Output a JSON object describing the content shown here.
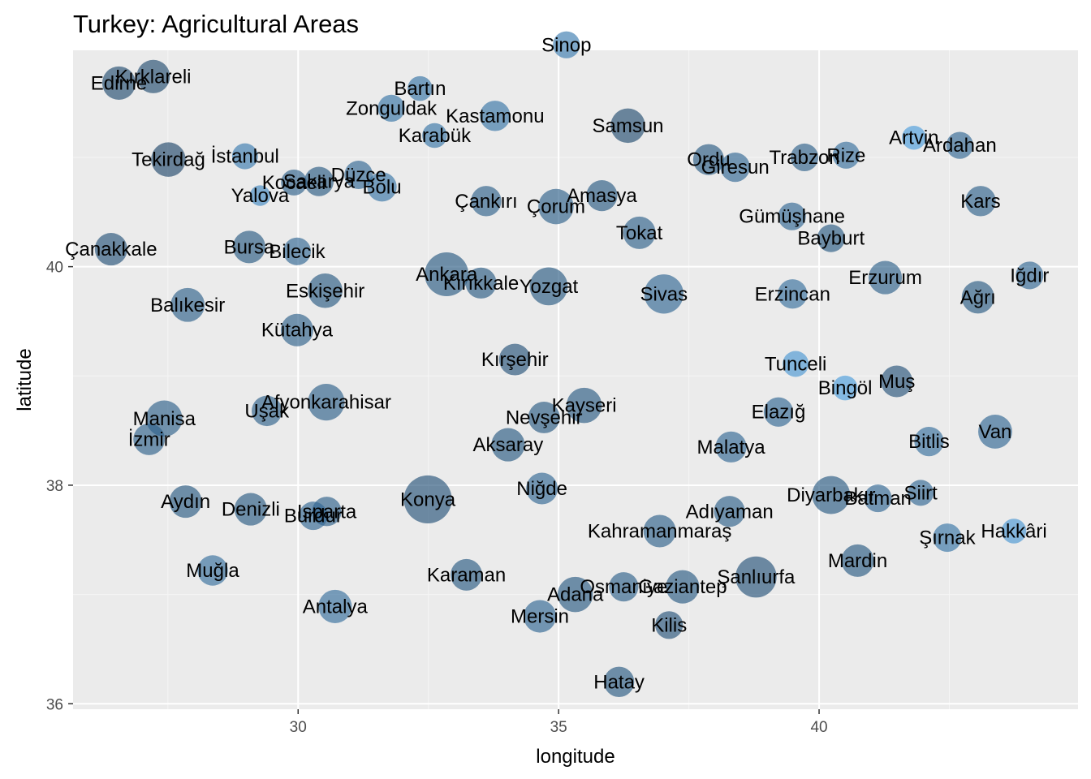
{
  "chart_data": {
    "type": "scatter",
    "title": "Turkey: Agricultural Areas",
    "xlabel": "longitude",
    "ylabel": "latitude",
    "xlim": [
      25.68,
      44.97
    ],
    "ylim": [
      35.95,
      41.98
    ],
    "x_ticks": [
      30,
      35,
      40
    ],
    "y_ticks": [
      36,
      38,
      40
    ],
    "grid": true,
    "panel_background": "#EBEBEB",
    "color_low": "#132B43",
    "color_high": "#56B1F7",
    "points": [
      {
        "name": "Edirne",
        "lon": 26.56,
        "lat": 41.68,
        "size": 0.58,
        "shade": 0.25
      },
      {
        "name": "Kırklareli",
        "lon": 27.22,
        "lat": 41.74,
        "size": 0.58,
        "shade": 0.25
      },
      {
        "name": "Tekirdağ",
        "lon": 27.51,
        "lat": 40.98,
        "size": 0.62,
        "shade": 0.22
      },
      {
        "name": "İstanbul",
        "lon": 28.98,
        "lat": 41.01,
        "size": 0.35,
        "shade": 0.6
      },
      {
        "name": "Çanakkale",
        "lon": 26.41,
        "lat": 40.16,
        "size": 0.55,
        "shade": 0.3
      },
      {
        "name": "Yalova",
        "lon": 29.27,
        "lat": 40.65,
        "size": 0.22,
        "shade": 0.7
      },
      {
        "name": "Kocaeli",
        "lon": 29.92,
        "lat": 40.77,
        "size": 0.35,
        "shade": 0.4
      },
      {
        "name": "Sakarya",
        "lon": 30.4,
        "lat": 40.78,
        "size": 0.45,
        "shade": 0.35
      },
      {
        "name": "Düzce",
        "lon": 31.16,
        "lat": 40.84,
        "size": 0.42,
        "shade": 0.45
      },
      {
        "name": "Bolu",
        "lon": 31.61,
        "lat": 40.73,
        "size": 0.45,
        "shade": 0.55
      },
      {
        "name": "Zonguldak",
        "lon": 31.79,
        "lat": 41.45,
        "size": 0.38,
        "shade": 0.55
      },
      {
        "name": "Bartın",
        "lon": 32.34,
        "lat": 41.63,
        "size": 0.32,
        "shade": 0.55
      },
      {
        "name": "Karabük",
        "lon": 32.62,
        "lat": 41.2,
        "size": 0.32,
        "shade": 0.55
      },
      {
        "name": "Kastamonu",
        "lon": 33.78,
        "lat": 41.38,
        "size": 0.48,
        "shade": 0.55
      },
      {
        "name": "Sinop",
        "lon": 35.15,
        "lat": 42.03,
        "size": 0.38,
        "shade": 0.6
      },
      {
        "name": "Samsun",
        "lon": 36.33,
        "lat": 41.29,
        "size": 0.62,
        "shade": 0.25
      },
      {
        "name": "Ordu",
        "lon": 37.88,
        "lat": 40.98,
        "size": 0.5,
        "shade": 0.35
      },
      {
        "name": "Giresun",
        "lon": 38.39,
        "lat": 40.91,
        "size": 0.45,
        "shade": 0.45
      },
      {
        "name": "Trabzon",
        "lon": 39.72,
        "lat": 41.0,
        "size": 0.4,
        "shade": 0.4
      },
      {
        "name": "Rize",
        "lon": 40.52,
        "lat": 41.02,
        "size": 0.38,
        "shade": 0.5
      },
      {
        "name": "Artvin",
        "lon": 41.82,
        "lat": 41.18,
        "size": 0.3,
        "shade": 0.85
      },
      {
        "name": "Ardahan",
        "lon": 42.7,
        "lat": 41.11,
        "size": 0.38,
        "shade": 0.45
      },
      {
        "name": "Kars",
        "lon": 43.1,
        "lat": 40.6,
        "size": 0.48,
        "shade": 0.4
      },
      {
        "name": "Çankırı",
        "lon": 33.61,
        "lat": 40.6,
        "size": 0.48,
        "shade": 0.4
      },
      {
        "name": "Çorum",
        "lon": 34.95,
        "lat": 40.55,
        "size": 0.65,
        "shade": 0.4
      },
      {
        "name": "Amasya",
        "lon": 35.83,
        "lat": 40.65,
        "size": 0.5,
        "shade": 0.35
      },
      {
        "name": "Tokat",
        "lon": 36.55,
        "lat": 40.31,
        "size": 0.55,
        "shade": 0.4
      },
      {
        "name": "Gümüşhane",
        "lon": 39.48,
        "lat": 40.46,
        "size": 0.4,
        "shade": 0.45
      },
      {
        "name": "Bayburt",
        "lon": 40.23,
        "lat": 40.26,
        "size": 0.4,
        "shade": 0.35
      },
      {
        "name": "Erzurum",
        "lon": 41.27,
        "lat": 39.9,
        "size": 0.58,
        "shade": 0.4
      },
      {
        "name": "Iğdır",
        "lon": 44.04,
        "lat": 39.92,
        "size": 0.4,
        "shade": 0.45
      },
      {
        "name": "Ağrı",
        "lon": 43.05,
        "lat": 39.72,
        "size": 0.55,
        "shade": 0.35
      },
      {
        "name": "Erzincan",
        "lon": 39.49,
        "lat": 39.75,
        "size": 0.45,
        "shade": 0.5
      },
      {
        "name": "Bursa",
        "lon": 29.06,
        "lat": 40.18,
        "size": 0.55,
        "shade": 0.35
      },
      {
        "name": "Bilecik",
        "lon": 29.98,
        "lat": 40.14,
        "size": 0.4,
        "shade": 0.45
      },
      {
        "name": "Ankara",
        "lon": 32.85,
        "lat": 39.93,
        "size": 1.0,
        "shade": 0.35
      },
      {
        "name": "Kırıkkale",
        "lon": 33.51,
        "lat": 39.85,
        "size": 0.5,
        "shade": 0.35
      },
      {
        "name": "Yozgat",
        "lon": 34.81,
        "lat": 39.82,
        "size": 0.75,
        "shade": 0.35
      },
      {
        "name": "Eskişehir",
        "lon": 30.52,
        "lat": 39.78,
        "size": 0.62,
        "shade": 0.35
      },
      {
        "name": "Balıkesir",
        "lon": 27.88,
        "lat": 39.65,
        "size": 0.6,
        "shade": 0.4
      },
      {
        "name": "Kütahya",
        "lon": 29.98,
        "lat": 39.42,
        "size": 0.55,
        "shade": 0.4
      },
      {
        "name": "Sivas",
        "lon": 37.02,
        "lat": 39.75,
        "size": 0.8,
        "shade": 0.45
      },
      {
        "name": "Tunceli",
        "lon": 39.55,
        "lat": 39.11,
        "size": 0.35,
        "shade": 0.8
      },
      {
        "name": "Bingöl",
        "lon": 40.5,
        "lat": 38.89,
        "size": 0.32,
        "shade": 0.85
      },
      {
        "name": "Muş",
        "lon": 41.49,
        "lat": 38.95,
        "size": 0.52,
        "shade": 0.3
      },
      {
        "name": "Kırşehir",
        "lon": 34.16,
        "lat": 39.15,
        "size": 0.52,
        "shade": 0.3
      },
      {
        "name": "Nevşehir",
        "lon": 34.72,
        "lat": 38.62,
        "size": 0.52,
        "shade": 0.35
      },
      {
        "name": "Kayseri",
        "lon": 35.49,
        "lat": 38.73,
        "size": 0.65,
        "shade": 0.35
      },
      {
        "name": "Afyonkarahisar",
        "lon": 30.54,
        "lat": 38.76,
        "size": 0.7,
        "shade": 0.4
      },
      {
        "name": "Manisa",
        "lon": 27.43,
        "lat": 38.61,
        "size": 0.68,
        "shade": 0.4
      },
      {
        "name": "İzmir",
        "lon": 27.14,
        "lat": 38.42,
        "size": 0.52,
        "shade": 0.4
      },
      {
        "name": "Uşak",
        "lon": 29.4,
        "lat": 38.68,
        "size": 0.48,
        "shade": 0.4
      },
      {
        "name": "Elazığ",
        "lon": 39.22,
        "lat": 38.67,
        "size": 0.45,
        "shade": 0.45
      },
      {
        "name": "Bitlis",
        "lon": 42.11,
        "lat": 38.4,
        "size": 0.45,
        "shade": 0.5
      },
      {
        "name": "Van",
        "lon": 43.38,
        "lat": 38.49,
        "size": 0.6,
        "shade": 0.45
      },
      {
        "name": "Aksaray",
        "lon": 34.03,
        "lat": 38.37,
        "size": 0.58,
        "shade": 0.35
      },
      {
        "name": "Malatya",
        "lon": 38.31,
        "lat": 38.35,
        "size": 0.5,
        "shade": 0.45
      },
      {
        "name": "Niğde",
        "lon": 34.68,
        "lat": 37.97,
        "size": 0.52,
        "shade": 0.45
      },
      {
        "name": "Isparta",
        "lon": 30.55,
        "lat": 37.76,
        "size": 0.45,
        "shade": 0.4
      },
      {
        "name": "Konya",
        "lon": 32.49,
        "lat": 37.87,
        "size": 1.2,
        "shade": 0.3
      },
      {
        "name": "Aydın",
        "lon": 27.84,
        "lat": 37.85,
        "size": 0.55,
        "shade": 0.35
      },
      {
        "name": "Denizli",
        "lon": 29.09,
        "lat": 37.78,
        "size": 0.55,
        "shade": 0.35
      },
      {
        "name": "Kahramanmaraş",
        "lon": 36.94,
        "lat": 37.58,
        "size": 0.55,
        "shade": 0.4
      },
      {
        "name": "Adıyaman",
        "lon": 38.28,
        "lat": 37.76,
        "size": 0.5,
        "shade": 0.4
      },
      {
        "name": "Diyarbakır",
        "lon": 40.23,
        "lat": 37.91,
        "size": 0.75,
        "shade": 0.35
      },
      {
        "name": "Batman",
        "lon": 41.13,
        "lat": 37.88,
        "size": 0.4,
        "shade": 0.45
      },
      {
        "name": "Siirt",
        "lon": 41.95,
        "lat": 37.93,
        "size": 0.35,
        "shade": 0.45
      },
      {
        "name": "Şırnak",
        "lon": 42.46,
        "lat": 37.52,
        "size": 0.42,
        "shade": 0.55
      },
      {
        "name": "Hakkâri",
        "lon": 43.74,
        "lat": 37.58,
        "size": 0.32,
        "shade": 0.8
      },
      {
        "name": "Burdur",
        "lon": 30.29,
        "lat": 37.72,
        "size": 0.42,
        "shade": 0.45
      },
      {
        "name": "Muğla",
        "lon": 28.36,
        "lat": 37.22,
        "size": 0.48,
        "shade": 0.5
      },
      {
        "name": "Karaman",
        "lon": 33.23,
        "lat": 37.18,
        "size": 0.52,
        "shade": 0.35
      },
      {
        "name": "Şanlıurfa",
        "lon": 38.79,
        "lat": 37.16,
        "size": 0.88,
        "shade": 0.3
      },
      {
        "name": "Mardin",
        "lon": 40.74,
        "lat": 37.31,
        "size": 0.55,
        "shade": 0.35
      },
      {
        "name": "Antalya",
        "lon": 30.71,
        "lat": 36.89,
        "size": 0.58,
        "shade": 0.5
      },
      {
        "name": "Osmaniye",
        "lon": 36.25,
        "lat": 37.07,
        "size": 0.45,
        "shade": 0.4
      },
      {
        "name": "Gaziantep",
        "lon": 37.38,
        "lat": 37.07,
        "size": 0.58,
        "shade": 0.35
      },
      {
        "name": "Adana",
        "lon": 35.32,
        "lat": 37.0,
        "size": 0.65,
        "shade": 0.35
      },
      {
        "name": "Mersin",
        "lon": 34.64,
        "lat": 36.8,
        "size": 0.55,
        "shade": 0.45
      },
      {
        "name": "Kilis",
        "lon": 37.12,
        "lat": 36.72,
        "size": 0.4,
        "shade": 0.3
      },
      {
        "name": "Hatay",
        "lon": 36.16,
        "lat": 36.2,
        "size": 0.48,
        "shade": 0.35
      }
    ]
  }
}
